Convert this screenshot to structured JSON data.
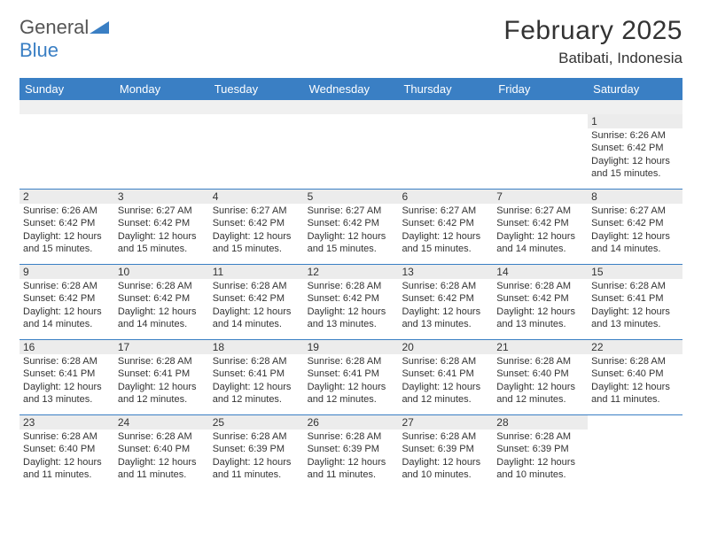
{
  "logo": {
    "general": "General",
    "blue": "Blue"
  },
  "title": "February 2025",
  "location": "Batibati, Indonesia",
  "weekdays": [
    "Sunday",
    "Monday",
    "Tuesday",
    "Wednesday",
    "Thursday",
    "Friday",
    "Saturday"
  ],
  "colors": {
    "accent": "#3a7fc4",
    "daynum_bg": "#ececec",
    "blank_bg": "#f0f0f0",
    "text": "#333333"
  },
  "weeks": [
    [
      null,
      null,
      null,
      null,
      null,
      null,
      {
        "num": "1",
        "sunrise": "Sunrise: 6:26 AM",
        "sunset": "Sunset: 6:42 PM",
        "daylight": "Daylight: 12 hours and 15 minutes."
      }
    ],
    [
      {
        "num": "2",
        "sunrise": "Sunrise: 6:26 AM",
        "sunset": "Sunset: 6:42 PM",
        "daylight": "Daylight: 12 hours and 15 minutes."
      },
      {
        "num": "3",
        "sunrise": "Sunrise: 6:27 AM",
        "sunset": "Sunset: 6:42 PM",
        "daylight": "Daylight: 12 hours and 15 minutes."
      },
      {
        "num": "4",
        "sunrise": "Sunrise: 6:27 AM",
        "sunset": "Sunset: 6:42 PM",
        "daylight": "Daylight: 12 hours and 15 minutes."
      },
      {
        "num": "5",
        "sunrise": "Sunrise: 6:27 AM",
        "sunset": "Sunset: 6:42 PM",
        "daylight": "Daylight: 12 hours and 15 minutes."
      },
      {
        "num": "6",
        "sunrise": "Sunrise: 6:27 AM",
        "sunset": "Sunset: 6:42 PM",
        "daylight": "Daylight: 12 hours and 15 minutes."
      },
      {
        "num": "7",
        "sunrise": "Sunrise: 6:27 AM",
        "sunset": "Sunset: 6:42 PM",
        "daylight": "Daylight: 12 hours and 14 minutes."
      },
      {
        "num": "8",
        "sunrise": "Sunrise: 6:27 AM",
        "sunset": "Sunset: 6:42 PM",
        "daylight": "Daylight: 12 hours and 14 minutes."
      }
    ],
    [
      {
        "num": "9",
        "sunrise": "Sunrise: 6:28 AM",
        "sunset": "Sunset: 6:42 PM",
        "daylight": "Daylight: 12 hours and 14 minutes."
      },
      {
        "num": "10",
        "sunrise": "Sunrise: 6:28 AM",
        "sunset": "Sunset: 6:42 PM",
        "daylight": "Daylight: 12 hours and 14 minutes."
      },
      {
        "num": "11",
        "sunrise": "Sunrise: 6:28 AM",
        "sunset": "Sunset: 6:42 PM",
        "daylight": "Daylight: 12 hours and 14 minutes."
      },
      {
        "num": "12",
        "sunrise": "Sunrise: 6:28 AM",
        "sunset": "Sunset: 6:42 PM",
        "daylight": "Daylight: 12 hours and 13 minutes."
      },
      {
        "num": "13",
        "sunrise": "Sunrise: 6:28 AM",
        "sunset": "Sunset: 6:42 PM",
        "daylight": "Daylight: 12 hours and 13 minutes."
      },
      {
        "num": "14",
        "sunrise": "Sunrise: 6:28 AM",
        "sunset": "Sunset: 6:42 PM",
        "daylight": "Daylight: 12 hours and 13 minutes."
      },
      {
        "num": "15",
        "sunrise": "Sunrise: 6:28 AM",
        "sunset": "Sunset: 6:41 PM",
        "daylight": "Daylight: 12 hours and 13 minutes."
      }
    ],
    [
      {
        "num": "16",
        "sunrise": "Sunrise: 6:28 AM",
        "sunset": "Sunset: 6:41 PM",
        "daylight": "Daylight: 12 hours and 13 minutes."
      },
      {
        "num": "17",
        "sunrise": "Sunrise: 6:28 AM",
        "sunset": "Sunset: 6:41 PM",
        "daylight": "Daylight: 12 hours and 12 minutes."
      },
      {
        "num": "18",
        "sunrise": "Sunrise: 6:28 AM",
        "sunset": "Sunset: 6:41 PM",
        "daylight": "Daylight: 12 hours and 12 minutes."
      },
      {
        "num": "19",
        "sunrise": "Sunrise: 6:28 AM",
        "sunset": "Sunset: 6:41 PM",
        "daylight": "Daylight: 12 hours and 12 minutes."
      },
      {
        "num": "20",
        "sunrise": "Sunrise: 6:28 AM",
        "sunset": "Sunset: 6:41 PM",
        "daylight": "Daylight: 12 hours and 12 minutes."
      },
      {
        "num": "21",
        "sunrise": "Sunrise: 6:28 AM",
        "sunset": "Sunset: 6:40 PM",
        "daylight": "Daylight: 12 hours and 12 minutes."
      },
      {
        "num": "22",
        "sunrise": "Sunrise: 6:28 AM",
        "sunset": "Sunset: 6:40 PM",
        "daylight": "Daylight: 12 hours and 11 minutes."
      }
    ],
    [
      {
        "num": "23",
        "sunrise": "Sunrise: 6:28 AM",
        "sunset": "Sunset: 6:40 PM",
        "daylight": "Daylight: 12 hours and 11 minutes."
      },
      {
        "num": "24",
        "sunrise": "Sunrise: 6:28 AM",
        "sunset": "Sunset: 6:40 PM",
        "daylight": "Daylight: 12 hours and 11 minutes."
      },
      {
        "num": "25",
        "sunrise": "Sunrise: 6:28 AM",
        "sunset": "Sunset: 6:39 PM",
        "daylight": "Daylight: 12 hours and 11 minutes."
      },
      {
        "num": "26",
        "sunrise": "Sunrise: 6:28 AM",
        "sunset": "Sunset: 6:39 PM",
        "daylight": "Daylight: 12 hours and 11 minutes."
      },
      {
        "num": "27",
        "sunrise": "Sunrise: 6:28 AM",
        "sunset": "Sunset: 6:39 PM",
        "daylight": "Daylight: 12 hours and 10 minutes."
      },
      {
        "num": "28",
        "sunrise": "Sunrise: 6:28 AM",
        "sunset": "Sunset: 6:39 PM",
        "daylight": "Daylight: 12 hours and 10 minutes."
      },
      null
    ]
  ]
}
